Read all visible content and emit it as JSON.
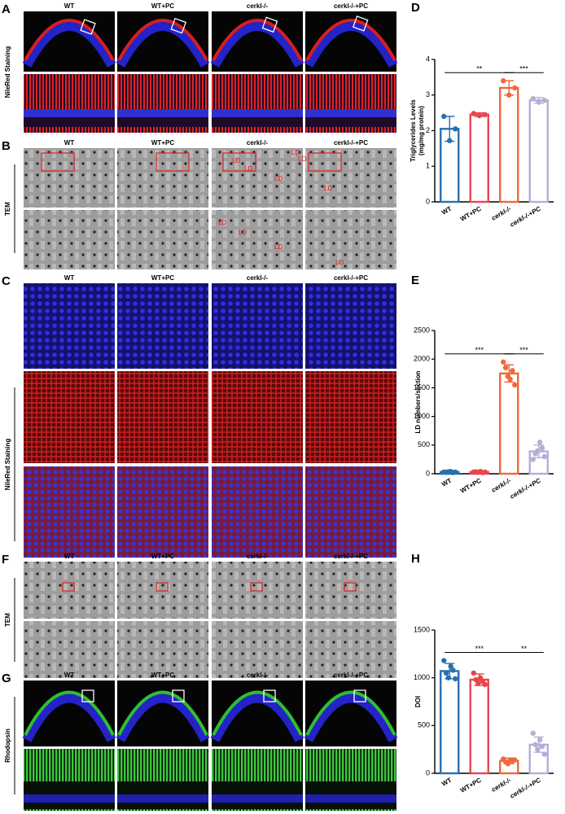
{
  "figure": {
    "panels": [
      {
        "label": "A",
        "columns": [
          "WT",
          "WT+PC",
          "cerkl-/-",
          "cerkl-/-+PC"
        ],
        "row_label": "NileRed Staining"
      },
      {
        "label": "B",
        "columns": [
          "WT",
          "WT+PC",
          "cerkl-/-",
          "cerkl-/-+PC"
        ],
        "row_label": "TEM",
        "annotations": [
          "LD",
          "LD",
          "LD",
          "LD",
          "LD",
          "LD",
          "LD",
          "LD",
          "LD",
          "LD"
        ]
      },
      {
        "label": "C",
        "columns": [
          "WT",
          "WT+PC",
          "cerkl-/-",
          "cerkl-/-+PC"
        ],
        "row_label": "NileRed Staining"
      },
      {
        "label": "F",
        "columns": [
          "WT",
          "WT+PC",
          "cerkl-/-",
          "cerkl-/-+PC"
        ],
        "row_label": "TEM"
      },
      {
        "label": "G",
        "columns": [
          "WT",
          "WT+PC",
          "cerkl-/-",
          "cerkl-/-+PC"
        ],
        "row_label": "Rhodopsin"
      }
    ]
  },
  "chart_data": [
    {
      "type": "bar",
      "label": "D",
      "y_label": [
        "Triglycerides Levels",
        "(mg/mg protein)"
      ],
      "categories": [
        "WT",
        "WT+PC",
        "cerkl-/-",
        "cerkl-/-+PC"
      ],
      "colors": [
        "#2a6fae",
        "#e8454f",
        "#f2683a",
        "#b5aed6"
      ],
      "values": [
        2.05,
        2.45,
        3.2,
        2.85
      ],
      "errors": [
        0.35,
        0.05,
        0.2,
        0.08
      ],
      "points": [
        [
          2.4,
          1.72,
          2.05
        ],
        [
          2.48,
          2.42,
          2.45
        ],
        [
          3.4,
          3.0,
          3.2
        ],
        [
          2.9,
          2.8,
          2.85
        ]
      ],
      "ylim": [
        0,
        4
      ],
      "yticks": [
        0,
        1,
        2,
        3,
        4
      ],
      "significance": [
        {
          "from": 0,
          "to": 2,
          "label": "**"
        },
        {
          "from": 2,
          "to": 3,
          "label": "***"
        }
      ]
    },
    {
      "type": "bar",
      "label": "E",
      "y_label": [
        "LD numbers/section"
      ],
      "categories": [
        "WT",
        "WT+PC",
        "cerkl-/-",
        "cerkl-/-+PC"
      ],
      "colors": [
        "#2a6fae",
        "#e8454f",
        "#f2683a",
        "#b5aed6"
      ],
      "values": [
        30,
        30,
        1750,
        390
      ],
      "errors": [
        10,
        10,
        150,
        110
      ],
      "points": [
        [
          30,
          25,
          35,
          40,
          20,
          30
        ],
        [
          30,
          35,
          25,
          40,
          20,
          30
        ],
        [
          1950,
          1850,
          1700,
          1650,
          1800,
          1550
        ],
        [
          250,
          350,
          400,
          550,
          450,
          300
        ]
      ],
      "ylim": [
        0,
        2500
      ],
      "yticks": [
        0,
        500,
        1000,
        1500,
        2000,
        2500
      ],
      "significance": [
        {
          "from": 0,
          "to": 2,
          "label": "***"
        },
        {
          "from": 2,
          "to": 3,
          "label": "***"
        }
      ]
    },
    {
      "type": "bar",
      "label": "H",
      "y_label": [
        "DOI"
      ],
      "categories": [
        "WT",
        "WT+PC",
        "cerkl-/-",
        "cerkl-/-+PC"
      ],
      "colors": [
        "#2a6fae",
        "#e8454f",
        "#f2683a",
        "#b5aed6"
      ],
      "values": [
        1070,
        980,
        130,
        300
      ],
      "errors": [
        80,
        60,
        30,
        80
      ],
      "points": [
        [
          1180,
          1050,
          1000,
          1120,
          1080,
          990
        ],
        [
          1050,
          980,
          940,
          1000,
          960,
          930
        ],
        [
          150,
          120,
          100,
          140,
          130,
          140
        ],
        [
          420,
          300,
          250,
          350,
          280,
          200
        ]
      ],
      "ylim": [
        0,
        1500
      ],
      "yticks": [
        0,
        500,
        1000,
        1500
      ],
      "significance": [
        {
          "from": 0,
          "to": 2,
          "label": "***"
        },
        {
          "from": 2,
          "to": 3,
          "label": "**"
        }
      ]
    }
  ]
}
